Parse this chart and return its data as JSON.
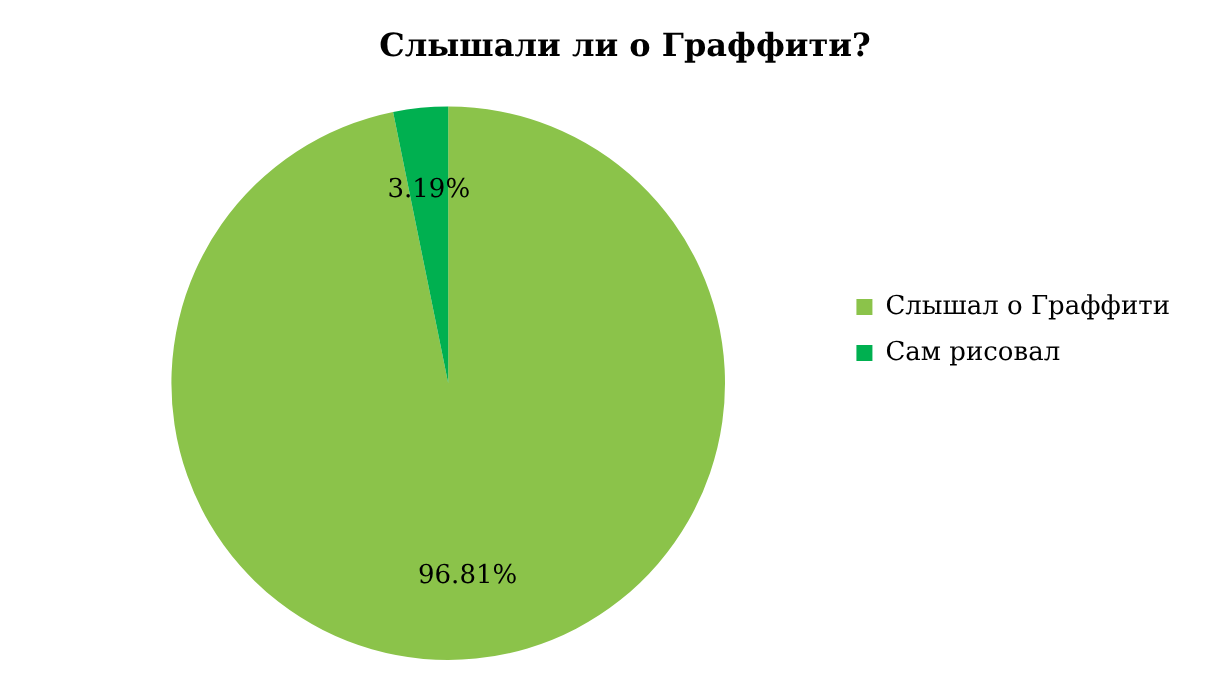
{
  "chart_data": {
    "type": "pie",
    "title": "Слышали ли о Граффити?",
    "categories": [
      "Слышал о Граффити",
      "Сам рисовал"
    ],
    "values": [
      96.81,
      3.19
    ],
    "colors": [
      "#8bc34a",
      "#00b050"
    ],
    "value_labels": [
      "96.81%",
      "3.19%"
    ],
    "legend": "right"
  }
}
